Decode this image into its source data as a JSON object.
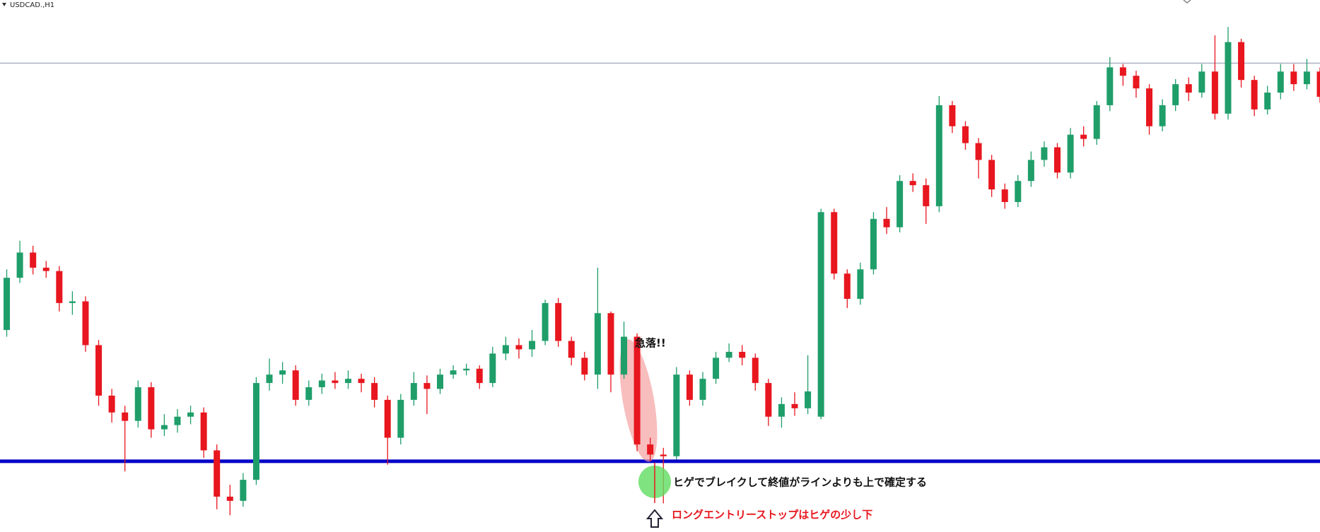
{
  "chart_data": {
    "type": "candlestick",
    "title": "USDCAD.,H1",
    "open": [
      240,
      302,
      332,
      314,
      310,
      272,
      274,
      222,
      162,
      142,
      132,
      172,
      122,
      127,
      137,
      142,
      97,
      42,
      37,
      62,
      177,
      187,
      192,
      157,
      172,
      180,
      177,
      182,
      177,
      157,
      112,
      157,
      177,
      170,
      187,
      192,
      194,
      177,
      212,
      222,
      217,
      227,
      272,
      227,
      207,
      187,
      260,
      187,
      232,
      104,
      92,
      90,
      187,
      157,
      182,
      207,
      214,
      207,
      177,
      137,
      152,
      147,
      137,
      380,
      307,
      277,
      312,
      372,
      362,
      417,
      412,
      387,
      507,
      482,
      462,
      442,
      407,
      392,
      417,
      442,
      457,
      427,
      472,
      467,
      507,
      552,
      542,
      527,
      482,
      507,
      532,
      522,
      547,
      497,
      582,
      537,
      502,
      522,
      547,
      532,
      547
    ],
    "high": [
      312,
      346,
      340,
      322,
      316,
      286,
      280,
      228,
      170,
      150,
      180,
      178,
      140,
      146,
      150,
      148,
      104,
      56,
      70,
      184,
      206,
      202,
      198,
      180,
      188,
      190,
      192,
      188,
      184,
      162,
      164,
      190,
      186,
      194,
      198,
      200,
      198,
      220,
      232,
      230,
      240,
      276,
      278,
      232,
      214,
      314,
      262,
      250,
      236,
      112,
      100,
      196,
      192,
      190,
      214,
      224,
      222,
      212,
      182,
      160,
      166,
      210,
      384,
      384,
      312,
      320,
      380,
      386,
      424,
      426,
      420,
      518,
      512,
      488,
      468,
      448,
      414,
      424,
      452,
      464,
      462,
      480,
      482,
      512,
      564,
      556,
      548,
      532,
      514,
      538,
      540,
      556,
      590,
      600,
      586,
      542,
      530,
      556,
      556,
      562,
      552
    ],
    "low": [
      232,
      296,
      306,
      302,
      262,
      258,
      214,
      150,
      130,
      72,
      124,
      112,
      114,
      118,
      128,
      88,
      27,
      20,
      30,
      56,
      168,
      176,
      150,
      150,
      164,
      170,
      170,
      166,
      148,
      80,
      104,
      150,
      140,
      164,
      182,
      186,
      170,
      172,
      204,
      206,
      208,
      222,
      220,
      198,
      180,
      170,
      166,
      182,
      96,
      84,
      34,
      86,
      150,
      150,
      176,
      202,
      198,
      168,
      126,
      124,
      138,
      140,
      134,
      300,
      266,
      270,
      306,
      354,
      356,
      404,
      366,
      380,
      474,
      454,
      420,
      398,
      384,
      386,
      410,
      434,
      420,
      420,
      458,
      460,
      500,
      530,
      516,
      472,
      476,
      500,
      512,
      516,
      490,
      490,
      528,
      494,
      496,
      514,
      524,
      526,
      510
    ],
    "close": [
      302,
      332,
      314,
      310,
      272,
      274,
      222,
      162,
      142,
      132,
      172,
      122,
      127,
      137,
      142,
      97,
      42,
      37,
      62,
      177,
      187,
      192,
      157,
      172,
      180,
      177,
      182,
      177,
      157,
      112,
      157,
      177,
      170,
      187,
      192,
      194,
      177,
      212,
      222,
      217,
      227,
      272,
      227,
      207,
      187,
      260,
      187,
      232,
      104,
      92,
      90,
      187,
      157,
      182,
      207,
      214,
      207,
      177,
      137,
      152,
      147,
      167,
      380,
      307,
      277,
      312,
      372,
      362,
      417,
      412,
      387,
      507,
      482,
      462,
      442,
      407,
      392,
      417,
      442,
      457,
      427,
      472,
      467,
      507,
      552,
      542,
      527,
      482,
      507,
      532,
      522,
      547,
      497,
      582,
      537,
      502,
      522,
      547,
      532,
      547,
      517
    ],
    "up_color": "#1f9e6a",
    "down_color": "#e8161e",
    "ylim": [
      0,
      632
    ],
    "lines": [
      {
        "value": 557,
        "color": "#a3a7bd"
      },
      {
        "value": 84,
        "color": "#0000c8"
      }
    ],
    "annotations": [
      "急落!!",
      "ヒゲでブレイクして終値がラインよりも上で確定する",
      "ロングエントリーストップはヒゲの少し下"
    ]
  }
}
